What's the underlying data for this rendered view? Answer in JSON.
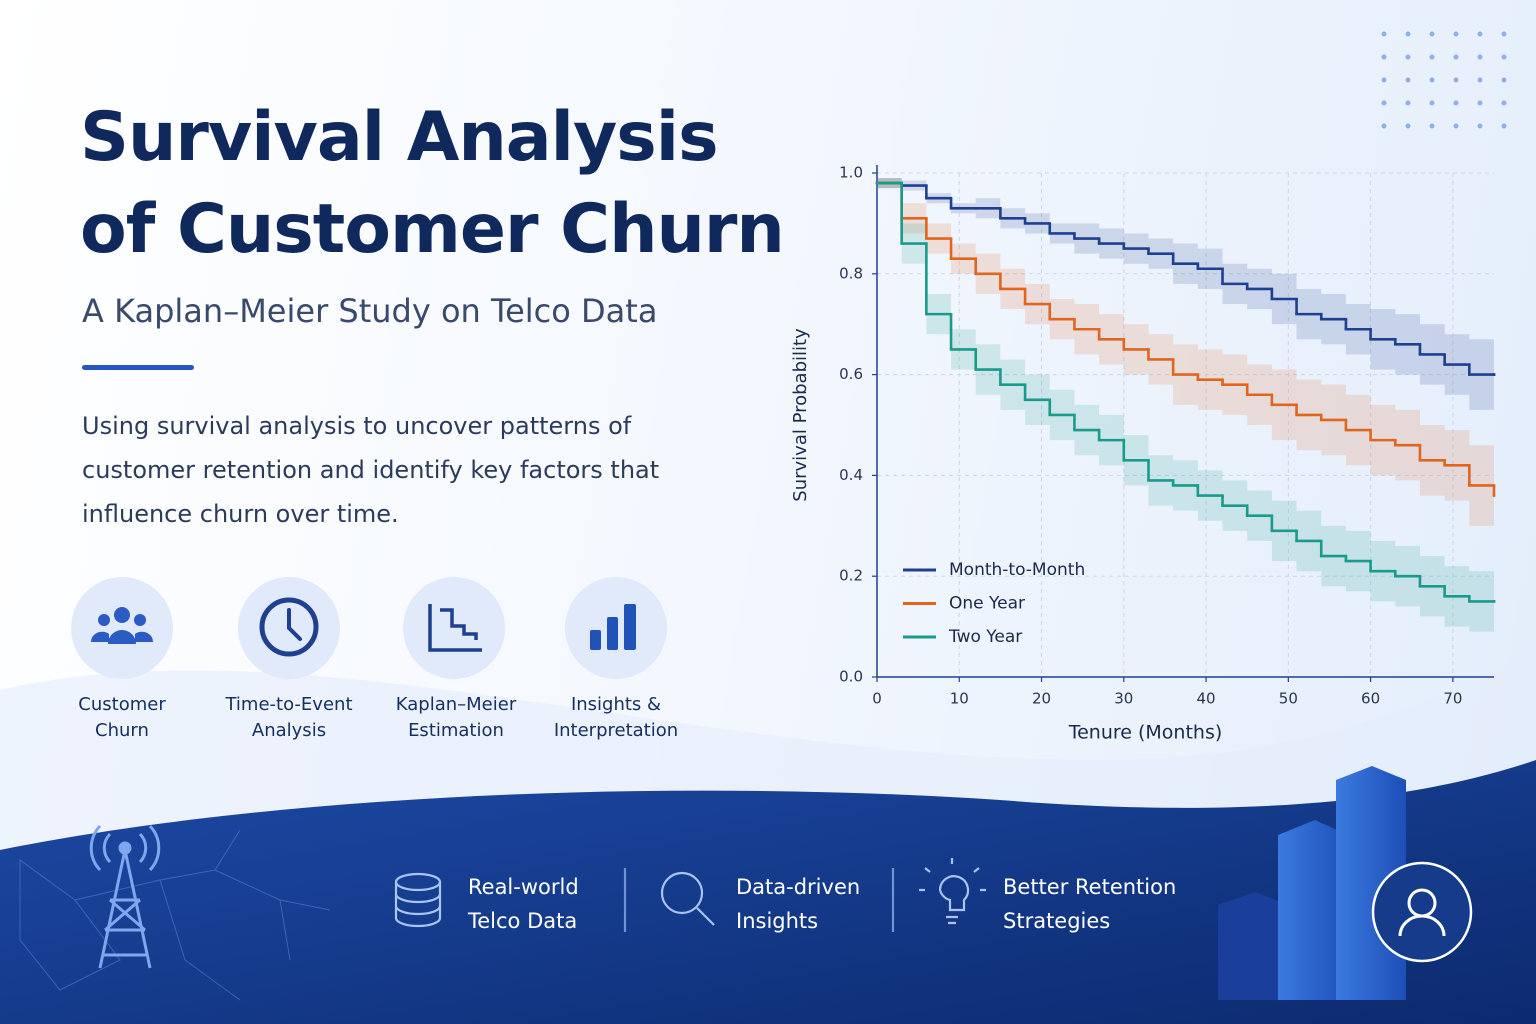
{
  "header": {
    "title_lines": [
      "Survival Analysis",
      "of Customer Churn"
    ],
    "subtitle": "A Kaplan–Meier Study on Telco Data",
    "description": "Using survival analysis to uncover patterns of customer retention and identify key factors that influence churn over time."
  },
  "features": [
    {
      "label": "Customer Churn"
    },
    {
      "label": "Time-to-Event Analysis"
    },
    {
      "label": "Kaplan–Meier Estimation"
    },
    {
      "label": "Insights & Interpretation"
    }
  ],
  "footer": [
    {
      "label": "Real-world Telco Data"
    },
    {
      "label": "Data-driven Insights"
    },
    {
      "label": "Better Retention Strategies"
    }
  ],
  "chart_data": {
    "type": "step",
    "x_label": "Tenure (Months)",
    "y_label": "Survival Probability",
    "x": [
      0,
      3,
      6,
      9,
      12,
      15,
      18,
      21,
      24,
      27,
      30,
      33,
      36,
      39,
      42,
      45,
      48,
      51,
      54,
      57,
      60,
      63,
      66,
      69,
      72,
      75
    ],
    "series": [
      {
        "name": "Month-to-Month",
        "color": "#1f3f8f",
        "values": [
          0.98,
          0.975,
          0.95,
          0.93,
          0.93,
          0.91,
          0.9,
          0.88,
          0.87,
          0.86,
          0.85,
          0.84,
          0.82,
          0.81,
          0.78,
          0.77,
          0.75,
          0.72,
          0.71,
          0.69,
          0.67,
          0.66,
          0.64,
          0.62,
          0.6,
          0.6
        ],
        "lower": [
          0.97,
          0.965,
          0.94,
          0.92,
          0.91,
          0.89,
          0.88,
          0.86,
          0.84,
          0.83,
          0.82,
          0.81,
          0.78,
          0.77,
          0.74,
          0.73,
          0.7,
          0.67,
          0.66,
          0.64,
          0.61,
          0.6,
          0.58,
          0.56,
          0.53,
          0.53
        ],
        "upper": [
          0.99,
          0.985,
          0.96,
          0.94,
          0.95,
          0.93,
          0.92,
          0.9,
          0.9,
          0.89,
          0.88,
          0.87,
          0.86,
          0.85,
          0.82,
          0.81,
          0.8,
          0.77,
          0.76,
          0.74,
          0.73,
          0.72,
          0.7,
          0.68,
          0.67,
          0.67
        ]
      },
      {
        "name": "One Year",
        "color": "#e0661f",
        "values": [
          0.98,
          0.91,
          0.87,
          0.83,
          0.8,
          0.77,
          0.74,
          0.71,
          0.69,
          0.67,
          0.65,
          0.63,
          0.6,
          0.59,
          0.58,
          0.56,
          0.54,
          0.52,
          0.51,
          0.49,
          0.47,
          0.46,
          0.43,
          0.42,
          0.38,
          0.36
        ],
        "lower": [
          0.97,
          0.88,
          0.84,
          0.8,
          0.76,
          0.73,
          0.7,
          0.67,
          0.64,
          0.62,
          0.6,
          0.58,
          0.54,
          0.53,
          0.52,
          0.5,
          0.47,
          0.45,
          0.44,
          0.42,
          0.4,
          0.39,
          0.36,
          0.35,
          0.3,
          0.28
        ],
        "upper": [
          0.99,
          0.94,
          0.9,
          0.86,
          0.84,
          0.81,
          0.78,
          0.75,
          0.74,
          0.72,
          0.7,
          0.68,
          0.66,
          0.65,
          0.64,
          0.62,
          0.61,
          0.59,
          0.58,
          0.56,
          0.54,
          0.53,
          0.5,
          0.49,
          0.46,
          0.44
        ]
      },
      {
        "name": "Two Year",
        "color": "#1a9a8a",
        "values": [
          0.98,
          0.86,
          0.72,
          0.65,
          0.61,
          0.58,
          0.55,
          0.52,
          0.49,
          0.47,
          0.43,
          0.39,
          0.38,
          0.36,
          0.34,
          0.32,
          0.29,
          0.27,
          0.24,
          0.23,
          0.21,
          0.2,
          0.18,
          0.16,
          0.15,
          0.15
        ],
        "lower": [
          0.97,
          0.82,
          0.68,
          0.61,
          0.56,
          0.53,
          0.5,
          0.47,
          0.44,
          0.42,
          0.38,
          0.34,
          0.33,
          0.31,
          0.29,
          0.27,
          0.23,
          0.21,
          0.18,
          0.17,
          0.15,
          0.14,
          0.12,
          0.1,
          0.09,
          0.09
        ],
        "upper": [
          0.99,
          0.9,
          0.76,
          0.69,
          0.66,
          0.63,
          0.6,
          0.57,
          0.54,
          0.52,
          0.48,
          0.44,
          0.43,
          0.41,
          0.39,
          0.37,
          0.35,
          0.33,
          0.3,
          0.29,
          0.27,
          0.26,
          0.24,
          0.22,
          0.21,
          0.21
        ]
      }
    ],
    "xlim": [
      0,
      75
    ],
    "xticks": [
      0,
      10,
      20,
      30,
      40,
      50,
      60,
      70
    ],
    "ylim": [
      0,
      1
    ],
    "yticks": [
      {
        "value": 0,
        "label": "0.0"
      },
      0.2,
      0.4,
      0.6,
      0.8,
      {
        "value": 1,
        "label": "1.0"
      }
    ],
    "grid": true,
    "legend": "lower left"
  }
}
